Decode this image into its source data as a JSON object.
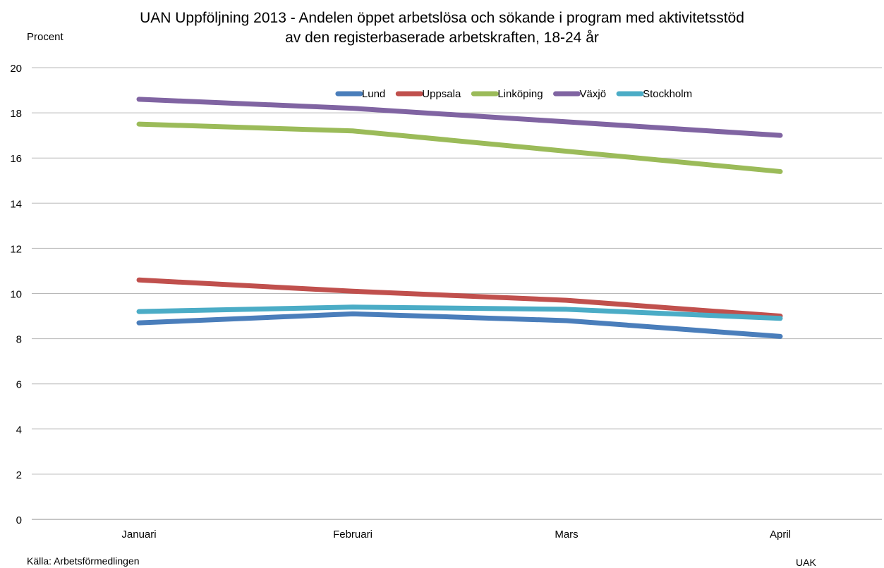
{
  "chart_data": {
    "type": "line",
    "title": "UAN Uppföljning 2013 - Andelen öppet arbetslösa och sökande i program med aktivitetsstöd",
    "subtitle": "av den registerbaserade arbetskraften, 18-24 år",
    "ylabel": "Procent",
    "xlabel": "",
    "categories": [
      "Januari",
      "Februari",
      "Mars",
      "April"
    ],
    "ylim": [
      0,
      20
    ],
    "yticks": [
      0,
      2,
      4,
      6,
      8,
      10,
      12,
      14,
      16,
      18,
      20
    ],
    "grid": true,
    "legend_position": "top-center",
    "series": [
      {
        "name": "Lund",
        "color": "#4a7ebb",
        "values": [
          8.7,
          9.1,
          8.8,
          8.1
        ]
      },
      {
        "name": "Uppsala",
        "color": "#c0504d",
        "values": [
          10.6,
          10.1,
          9.7,
          9.0
        ]
      },
      {
        "name": "Linköping",
        "color": "#9bbb59",
        "values": [
          17.5,
          17.2,
          16.3,
          15.4
        ]
      },
      {
        "name": "Växjö",
        "color": "#8064a2",
        "values": [
          18.6,
          18.2,
          17.6,
          17.0
        ]
      },
      {
        "name": "Stockholm",
        "color": "#4bacc6",
        "values": [
          9.2,
          9.4,
          9.3,
          8.9
        ]
      }
    ]
  },
  "footer": {
    "source": "Källa: Arbetsförmedlingen",
    "credit": "UAK"
  }
}
